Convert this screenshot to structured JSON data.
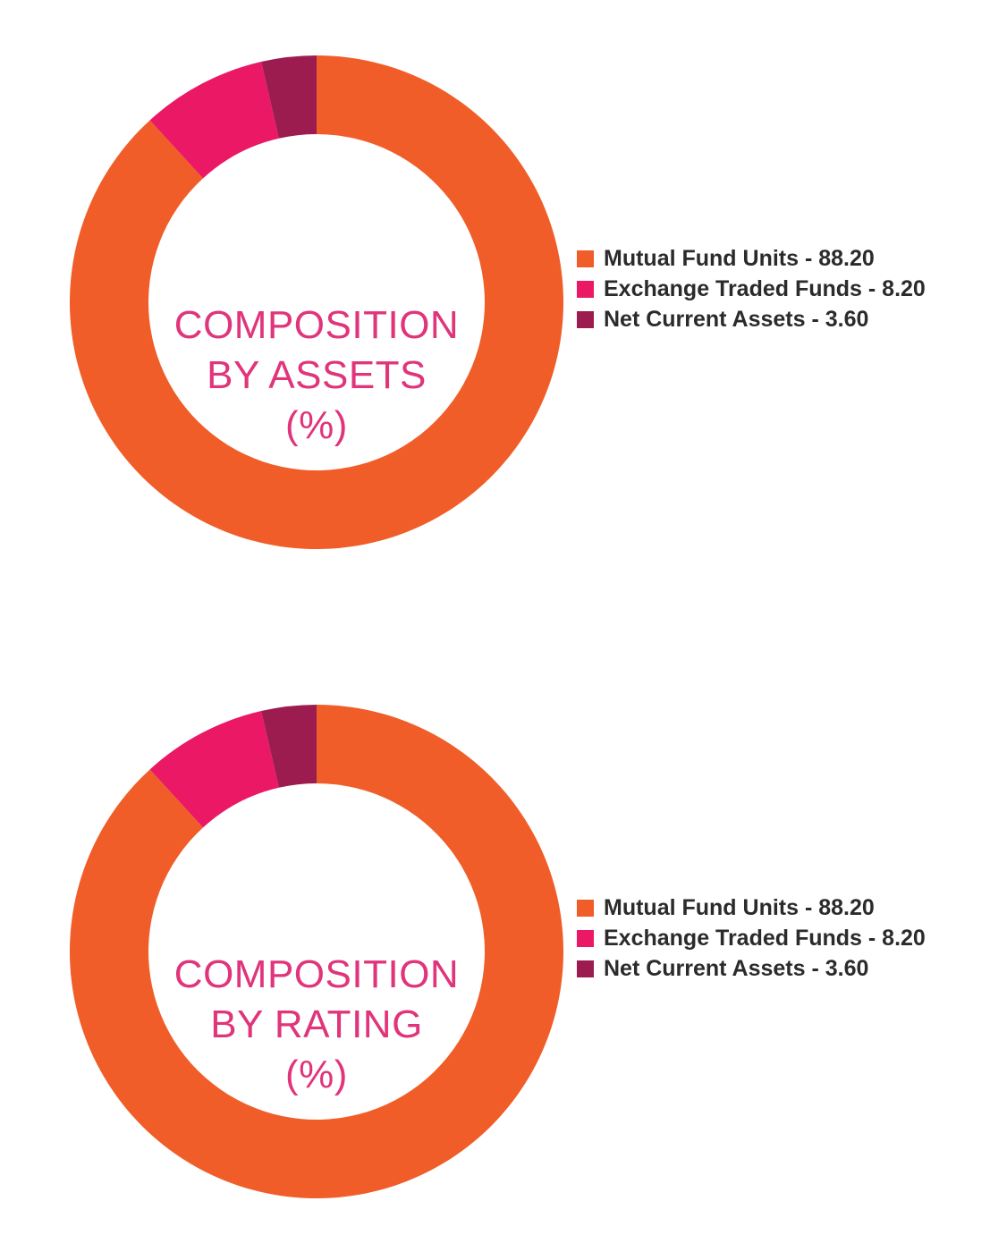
{
  "colors": {
    "mutual_fund_units": "#f05d28",
    "exchange_traded_funds": "#ea1865",
    "net_current_assets": "#9c1c50",
    "title_text": "#e0347b"
  },
  "chart_data": [
    {
      "type": "pie",
      "variant": "donut",
      "title_lines": [
        "COMPOSITION",
        "BY ASSETS",
        "(%)"
      ],
      "legend_position": "right",
      "slices": [
        {
          "label": "Mutual Fund Units - 88.20",
          "name": "Mutual Fund Units",
          "value": 88.2,
          "color": "#f05d28"
        },
        {
          "label": "Exchange Traded Funds - 8.20",
          "name": "Exchange Traded Funds",
          "value": 8.2,
          "color": "#ea1865"
        },
        {
          "label": "Net Current Assets - 3.60",
          "name": "Net Current Assets",
          "value": 3.6,
          "color": "#9c1c50"
        }
      ]
    },
    {
      "type": "pie",
      "variant": "donut",
      "title_lines": [
        "COMPOSITION",
        "BY RATING",
        "(%)"
      ],
      "legend_position": "right",
      "slices": [
        {
          "label": "Mutual Fund Units - 88.20",
          "name": "Mutual Fund Units",
          "value": 88.2,
          "color": "#f05d28"
        },
        {
          "label": "Exchange Traded Funds - 8.20",
          "name": "Exchange Traded Funds",
          "value": 8.2,
          "color": "#ea1865"
        },
        {
          "label": "Net Current Assets - 3.60",
          "name": "Net Current Assets",
          "value": 3.6,
          "color": "#9c1c50"
        }
      ]
    }
  ]
}
